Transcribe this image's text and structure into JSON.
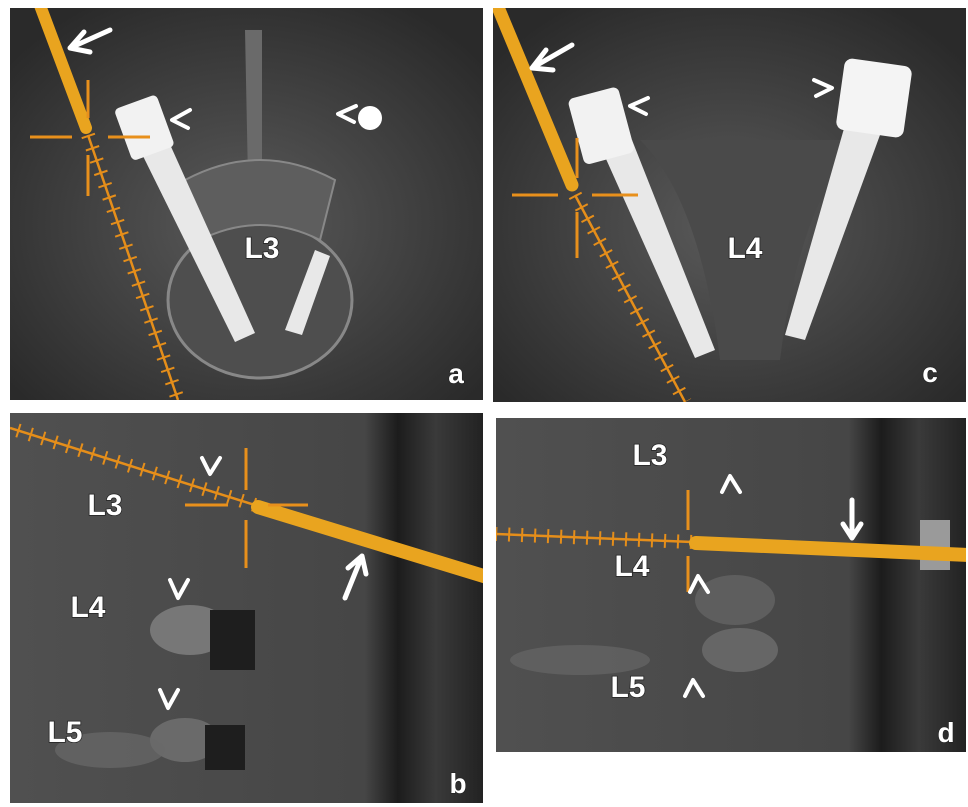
{
  "panels": [
    {
      "letter": "a",
      "labels": [
        "L3"
      ]
    },
    {
      "letter": "b",
      "labels": [
        "L3",
        "L4",
        "L5"
      ]
    },
    {
      "letter": "c",
      "labels": [
        "L4"
      ]
    },
    {
      "letter": "d",
      "labels": [
        "L3",
        "L4",
        "L5"
      ]
    }
  ]
}
